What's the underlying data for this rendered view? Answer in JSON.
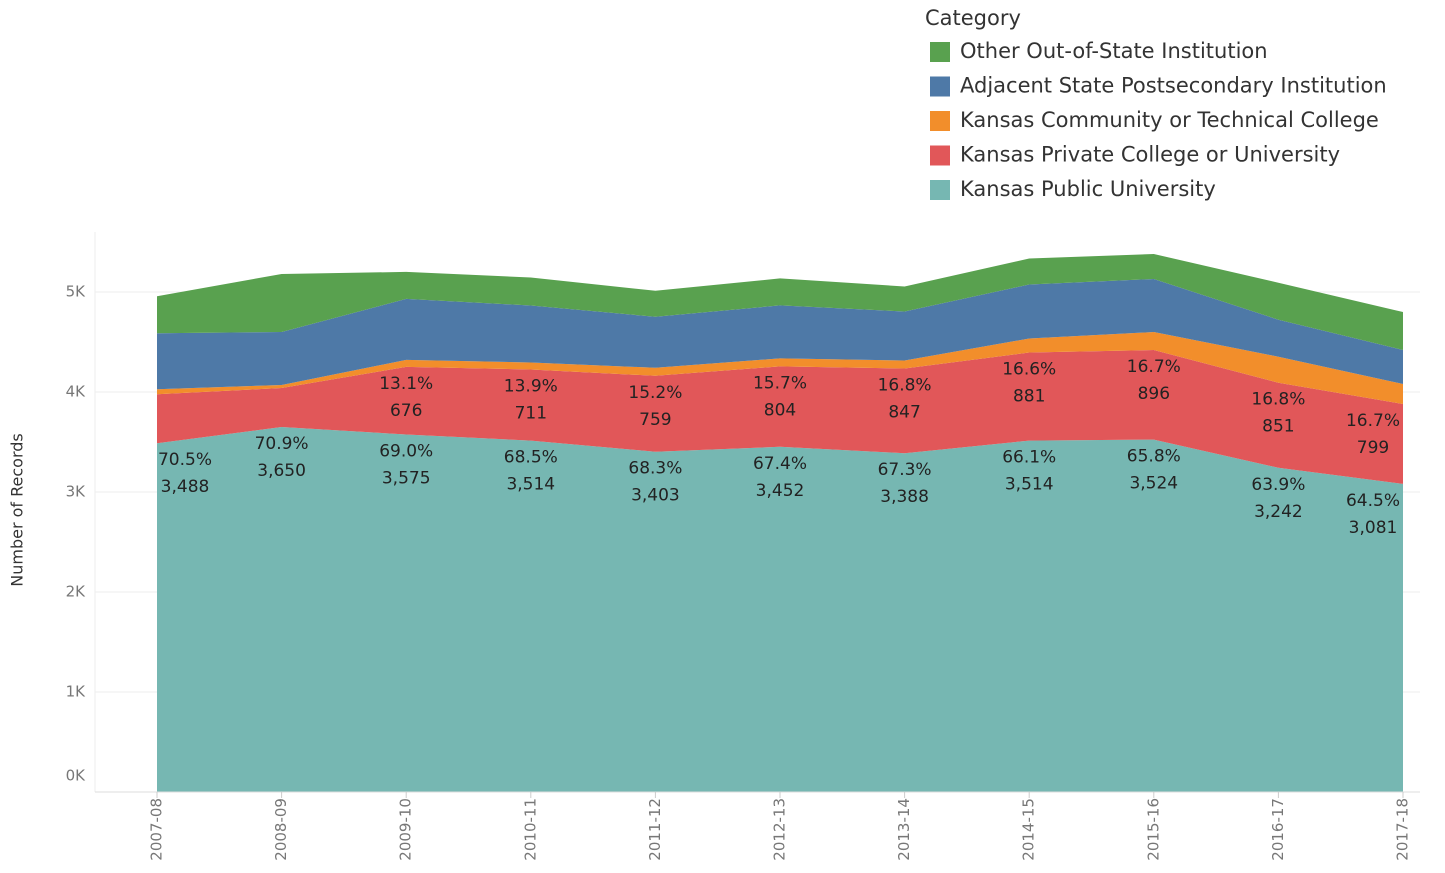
{
  "chart_data": {
    "type": "stacked_area",
    "y_axis_label": "Number of Records",
    "legend_title": "Category",
    "legend_position": "top-right",
    "grid": true,
    "categories": [
      "2007-08",
      "2008-09",
      "2009-10",
      "2010-11",
      "2011-12",
      "2012-13",
      "2013-14",
      "2014-15",
      "2015-16",
      "2016-17",
      "2017-18"
    ],
    "ylim": [
      0,
      5600
    ],
    "yticks": [
      {
        "value": 0,
        "label": "0K"
      },
      {
        "value": 1000,
        "label": "1K"
      },
      {
        "value": 2000,
        "label": "2K"
      },
      {
        "value": 3000,
        "label": "3K"
      },
      {
        "value": 4000,
        "label": "4K"
      },
      {
        "value": 5000,
        "label": "5K"
      }
    ],
    "series": [
      {
        "name": "Kansas Public University",
        "color": "#76b7b2",
        "values": [
          3488,
          3650,
          3575,
          3514,
          3403,
          3452,
          3388,
          3514,
          3524,
          3242,
          3081
        ],
        "value_labels": [
          "3,488",
          "3,650",
          "3,575",
          "3,514",
          "3,403",
          "3,452",
          "3,388",
          "3,514",
          "3,524",
          "3,242",
          "3,081"
        ],
        "percent_values": [
          70.5,
          70.9,
          69.0,
          68.5,
          68.3,
          67.4,
          67.3,
          66.1,
          65.8,
          63.9,
          64.5
        ],
        "percent_labels": [
          "70.5%",
          "70.9%",
          "69.0%",
          "68.5%",
          "68.3%",
          "67.4%",
          "67.3%",
          "66.1%",
          "65.8%",
          "63.9%",
          "64.5%"
        ]
      },
      {
        "name": "Kansas Private College or University",
        "color": "#e15759",
        "values": [
          490,
          390,
          676,
          711,
          759,
          804,
          847,
          881,
          896,
          851,
          799
        ],
        "value_labels": [
          null,
          null,
          "676",
          "711",
          "759",
          "804",
          "847",
          "881",
          "896",
          "851",
          "799"
        ],
        "percent_values": [
          null,
          null,
          13.1,
          13.9,
          15.2,
          15.7,
          16.8,
          16.6,
          16.7,
          16.8,
          16.7
        ],
        "percent_labels": [
          null,
          null,
          "13.1%",
          "13.9%",
          "15.2%",
          "15.7%",
          "16.8%",
          "16.6%",
          "16.7%",
          "16.8%",
          "16.7%"
        ]
      },
      {
        "name": "Kansas Community or Technical College",
        "color": "#f28e2b",
        "values": [
          50,
          30,
          70,
          70,
          80,
          80,
          80,
          140,
          180,
          260,
          200
        ]
      },
      {
        "name": "Adjacent State Postsecondary Institution",
        "color": "#4e79a7",
        "values": [
          560,
          530,
          610,
          570,
          510,
          530,
          490,
          540,
          530,
          370,
          340
        ]
      },
      {
        "name": "Other Out-of-State Institution",
        "color": "#59a14f",
        "values": [
          370,
          580,
          270,
          280,
          260,
          270,
          250,
          260,
          250,
          370,
          380
        ]
      }
    ]
  }
}
